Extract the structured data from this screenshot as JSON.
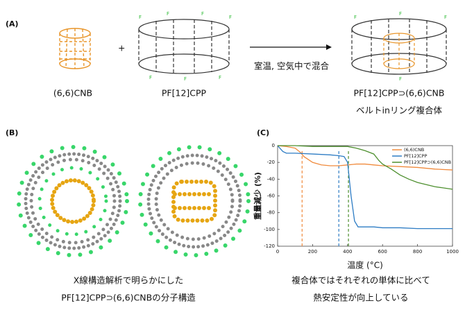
{
  "panel_a": {
    "label": "(A)",
    "reactant1": "(6,6)CNB",
    "plus": "+",
    "reactant2": "PF[12]CPP",
    "atom_label": "F",
    "condition": "室温, 空気中で混合",
    "product": "PF[12]CPP⊃(6,6)CNB",
    "product_note": "ベルトinリング複合体"
  },
  "panel_b": {
    "label": "(B)",
    "caption": [
      "X線構造解析で明らかにした",
      "PF[12]CPP⊃(6,6)CNBの分子構造"
    ]
  },
  "panel_c": {
    "label": "(C)",
    "caption": [
      "複合体ではそれぞれの単体に比べて",
      "熱安定性が向上している"
    ],
    "chart_data": {
      "type": "line",
      "xlabel": "温度 (°C)",
      "ylabel": "重量減少 (%)",
      "xlim": [
        0,
        1000
      ],
      "xticks": [
        0,
        200,
        400,
        600,
        800,
        1000
      ],
      "ylim": [
        -120,
        0
      ],
      "yticks": [
        0,
        -20,
        -40,
        -60,
        -80,
        -100,
        -120
      ],
      "legend": "upper right",
      "series": [
        {
          "name": "(6,6)CNB",
          "color": "#f08a3c",
          "x": [
            0,
            50,
            100,
            130,
            150,
            200,
            250,
            300,
            350,
            400,
            450,
            500,
            550,
            600,
            700,
            800,
            900,
            1000
          ],
          "values": [
            0,
            -1,
            -3,
            -8,
            -13,
            -20,
            -23,
            -24,
            -24,
            -23,
            -22,
            -22,
            -23,
            -24,
            -25,
            -26,
            -28,
            -29
          ]
        },
        {
          "name": "PF[12]CPP",
          "color": "#2d7cc4",
          "x": [
            0,
            30,
            50,
            100,
            200,
            300,
            350,
            380,
            400,
            420,
            440,
            460,
            500,
            550,
            600,
            700,
            800,
            900,
            1000
          ],
          "values": [
            0,
            -7,
            -9,
            -9,
            -10,
            -11,
            -12,
            -13,
            -20,
            -60,
            -90,
            -97,
            -97,
            -97,
            -98,
            -98,
            -99,
            -99,
            -99
          ]
        },
        {
          "name": "PF[12]CPP⊃(6,6)CNB",
          "color": "#4d8f2e",
          "x": [
            0,
            100,
            200,
            300,
            400,
            450,
            500,
            550,
            580,
            600,
            650,
            700,
            750,
            800,
            900,
            1000
          ],
          "values": [
            0,
            0,
            -1,
            -1,
            -1,
            -3,
            -6,
            -10,
            -18,
            -22,
            -28,
            -35,
            -40,
            -44,
            -49,
            -52
          ]
        }
      ],
      "markers": [
        {
          "x": 140,
          "color": "#f08a3c"
        },
        {
          "x": 350,
          "color": "#2d7cc4"
        },
        {
          "x": 405,
          "color": "#4d8f2e"
        }
      ]
    }
  }
}
